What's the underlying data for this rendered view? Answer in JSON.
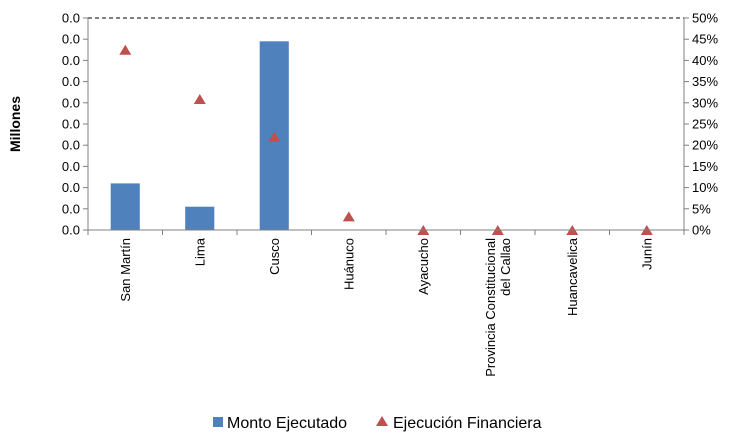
{
  "chart_data": {
    "type": "bar",
    "categories": [
      "San Martín",
      "Lima",
      "Cusco",
      "Huánuco",
      "Ayacucho",
      "Provincia Constitucional del Callao",
      "Huancavelica",
      "Junín"
    ],
    "category_lines": [
      [
        "San Martín"
      ],
      [
        "Lima"
      ],
      [
        "Cusco"
      ],
      [
        "Huánuco"
      ],
      [
        "Ayacucho"
      ],
      [
        "Provincia Constitucional",
        "del Callao"
      ],
      [
        "Huancavelica"
      ],
      [
        "Junín"
      ]
    ],
    "ylabel": "Millones",
    "y_tick_labels": [
      "0.0",
      "0.0",
      "0.0",
      "0.0",
      "0.0",
      "0.0",
      "0.0",
      "0.0",
      "0.0",
      "0.0",
      "0.0"
    ],
    "y2_tick_labels": [
      "0%",
      "5%",
      "10%",
      "15%",
      "20%",
      "25%",
      "30%",
      "35%",
      "40%",
      "45%",
      "50%"
    ],
    "ylim_fraction": [
      0,
      1
    ],
    "y2lim": [
      0,
      50
    ],
    "series": [
      {
        "name": "Monto Ejecutado",
        "type": "bar",
        "axis": "left",
        "color": "#4F81BD",
        "values_fraction_of_axis": [
          0.22,
          0.11,
          0.89,
          0,
          0,
          0,
          0,
          0
        ]
      },
      {
        "name": "Ejecución Financiera",
        "type": "scatter",
        "marker": "triangle",
        "axis": "right",
        "color": "#C0504D",
        "values": [
          42.5,
          30.9,
          22.0,
          3.2,
          0,
          0,
          0,
          0
        ]
      }
    ],
    "legend_position": "bottom",
    "grid": false
  }
}
